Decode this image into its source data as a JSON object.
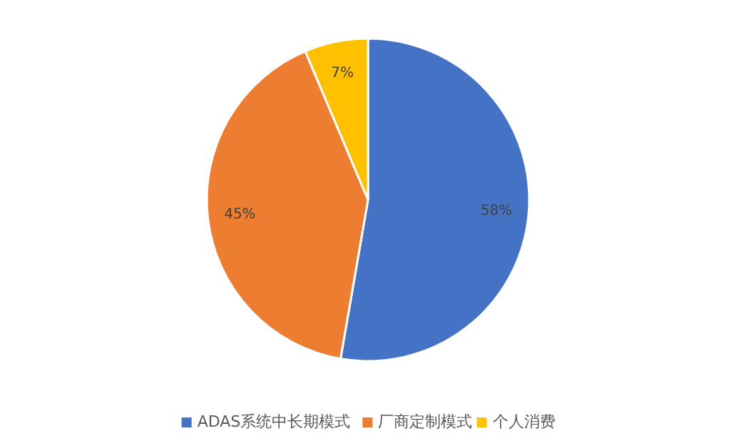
{
  "chart_data": {
    "type": "pie",
    "categories": [
      "ADAS系统中长期模式",
      "厂商定制模式",
      "个人消费"
    ],
    "values": [
      58,
      45,
      7
    ],
    "colors": [
      "#4472c4",
      "#ed7d31",
      "#ffc000"
    ],
    "value_labels": [
      "58%",
      "45%",
      "7%"
    ],
    "legend": "bottom"
  }
}
